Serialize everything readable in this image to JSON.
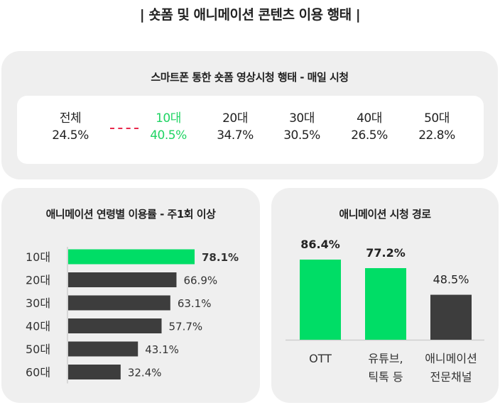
{
  "title": "| 숏폼 및 애니메이션 콘텐츠 이용 행태 |",
  "top_panel": {
    "title": "스마트폰 통한 숏폼 영상시청 행태 - 매일 시청",
    "stats": [
      {
        "label": "전체",
        "value": "24.5%"
      },
      {
        "label": "10대",
        "value": "40.5%"
      },
      {
        "label": "20대",
        "value": "34.7%"
      },
      {
        "label": "30대",
        "value": "30.5%"
      },
      {
        "label": "40대",
        "value": "26.5%"
      },
      {
        "label": "50대",
        "value": "22.8%"
      }
    ]
  },
  "chart_data": [
    {
      "type": "bar",
      "orientation": "horizontal",
      "title": "애니메이션 연령별 이용률 - 주1회 이상",
      "categories": [
        "10대",
        "20대",
        "30대",
        "40대",
        "50대",
        "60대"
      ],
      "values": [
        78.1,
        66.9,
        63.1,
        57.7,
        43.1,
        32.4
      ],
      "labels": [
        "78.1%",
        "66.9%",
        "63.1%",
        "57.7%",
        "43.1%",
        "32.4%"
      ],
      "highlight_index": 0,
      "colors": {
        "highlight": "#00dd66",
        "default": "#3d3d3d"
      }
    },
    {
      "type": "bar",
      "orientation": "vertical",
      "title": "애니메이션 시청 경로",
      "categories": [
        "OTT",
        "유튜브, 틱톡 등",
        "애니메이션 전문채널"
      ],
      "category_lines": [
        [
          "OTT"
        ],
        [
          "유튜브,",
          "틱톡 등"
        ],
        [
          "애니메이션",
          "전문채널"
        ]
      ],
      "values": [
        86.4,
        77.2,
        48.5
      ],
      "labels": [
        "86.4%",
        "77.2%",
        "48.5%"
      ],
      "bold_labels": [
        true,
        true,
        false
      ],
      "colors": [
        "#00dd66",
        "#00dd66",
        "#3d3d3d"
      ]
    }
  ]
}
